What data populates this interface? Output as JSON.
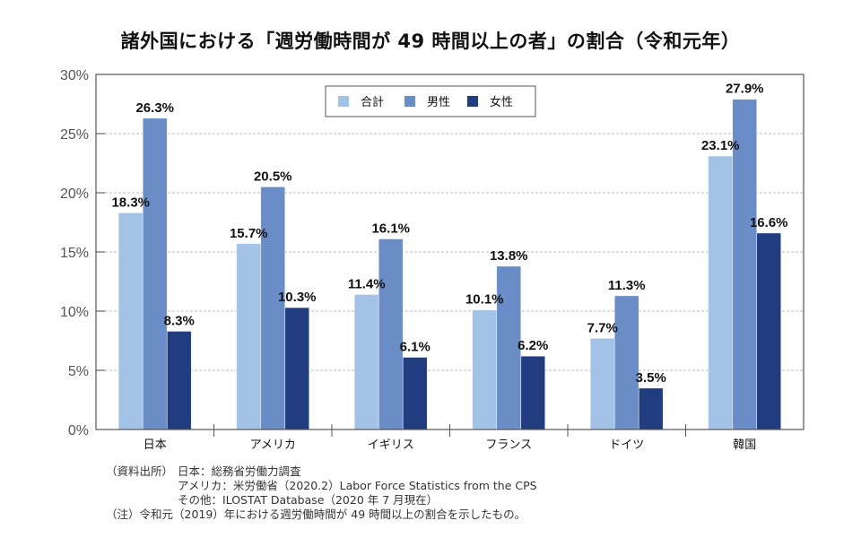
{
  "chart_data": {
    "type": "bar",
    "title": "諸外国における「週労働時間が 49 時間以上の者」の割合（令和元年）",
    "xlabel": "",
    "ylabel": "",
    "ylim": [
      0,
      30
    ],
    "yticks": [
      0,
      5,
      10,
      15,
      20,
      25,
      30
    ],
    "ytick_labels": [
      "0%",
      "5%",
      "10%",
      "15%",
      "20%",
      "25%",
      "30%"
    ],
    "grid": "horizontal dashed",
    "legend_position": "top-center",
    "categories": [
      "日本",
      "アメリカ",
      "イギリス",
      "フランス",
      "ドイツ",
      "韓国"
    ],
    "series": [
      {
        "name": "合計",
        "color": "#a3c3e6",
        "values": [
          18.3,
          15.7,
          11.4,
          10.1,
          7.7,
          23.1
        ],
        "labels": [
          "18.3%",
          "15.7%",
          "11.4%",
          "10.1%",
          "7.7%",
          "23.1%"
        ]
      },
      {
        "name": "男性",
        "color": "#6a8dc8",
        "values": [
          26.3,
          20.5,
          16.1,
          13.8,
          11.3,
          27.9
        ],
        "labels": [
          "26.3%",
          "20.5%",
          "16.1%",
          "13.8%",
          "11.3%",
          "27.9%"
        ]
      },
      {
        "name": "女性",
        "color": "#223c80",
        "values": [
          8.3,
          10.3,
          6.1,
          6.2,
          3.5,
          16.6
        ],
        "labels": [
          "8.3%",
          "10.3%",
          "6.1%",
          "6.2%",
          "3.5%",
          "16.6%"
        ]
      }
    ]
  },
  "notes": {
    "source_label": "（資料出所）",
    "source_lines": [
      "日本：総務省労働力調査",
      "アメリカ：米労働省（2020.2）Labor Force Statistics from the CPS",
      "その他：ILOSTAT Database（2020 年 7 月現在）"
    ],
    "note": "（注）令和元（2019）年における週労働時間が 49 時間以上の割合を示したもの。"
  }
}
